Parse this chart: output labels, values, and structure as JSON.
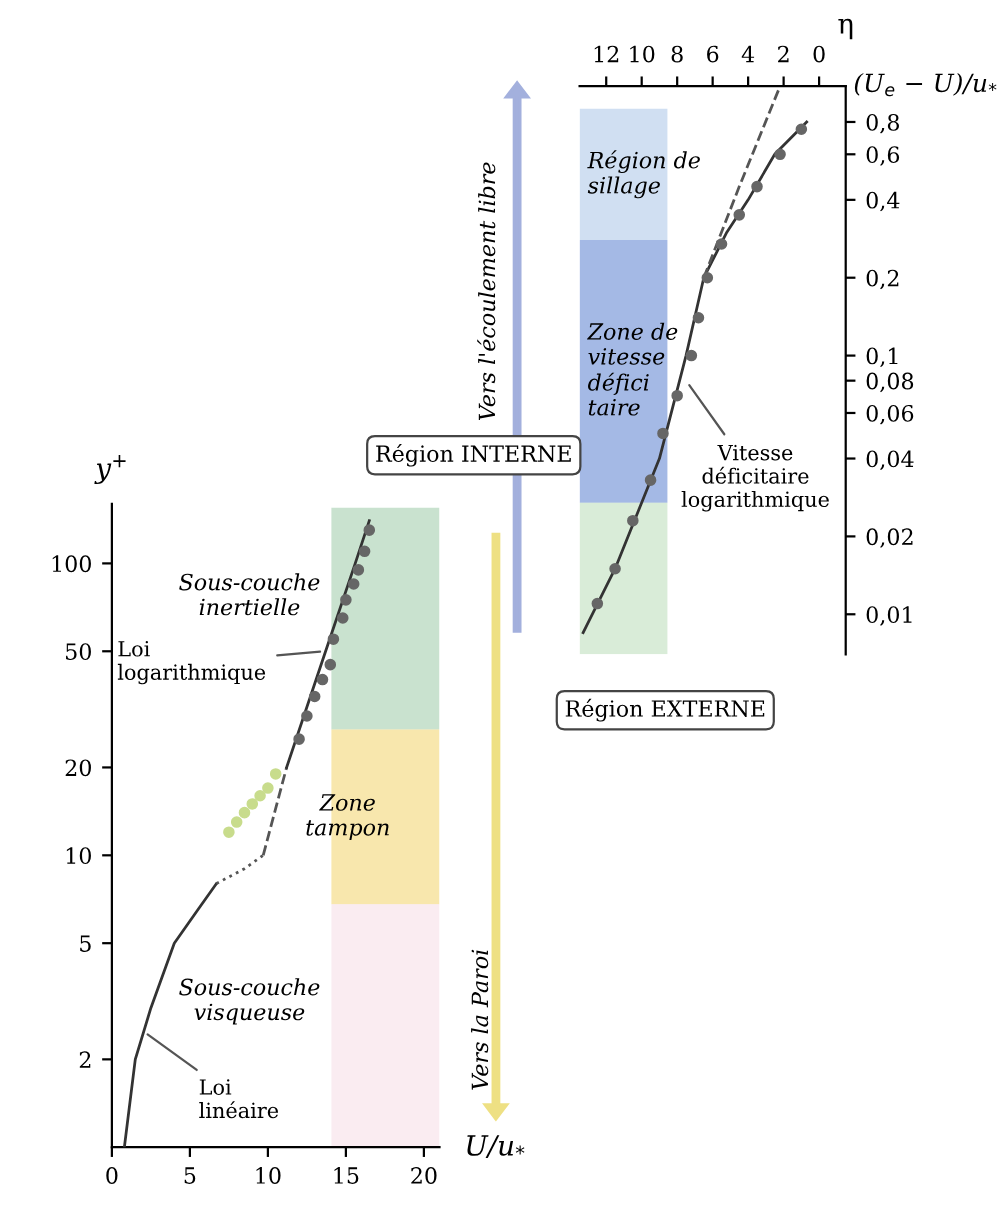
{
  "chart_data": [
    {
      "type": "line",
      "xlabel": "U/u$_{*}$",
      "ylabel": "y$^{+}$",
      "log": "y",
      "xlim": [
        0,
        21
      ],
      "ylim": [
        1,
        160
      ],
      "xticks": [
        0,
        5,
        10,
        15,
        20
      ],
      "yticks": [
        2,
        5,
        10,
        20,
        50,
        100
      ],
      "grid": false,
      "series": [
        {
          "type": "line",
          "color": "#333333",
          "line_style": "solid",
          "x": [
            0.8,
            1.5,
            2.5,
            4,
            5.5,
            6.7
          ],
          "values": [
            1,
            2,
            3,
            5,
            6.5,
            8
          ]
        },
        {
          "type": "line",
          "color": "#555555",
          "line_style": "dotted",
          "x": [
            6.7,
            8.5,
            9.7
          ],
          "values": [
            8,
            9,
            10
          ]
        },
        {
          "type": "line",
          "color": "#555555",
          "line_style": "dashed",
          "x": [
            9.7,
            11.2
          ],
          "values": [
            10,
            20
          ]
        },
        {
          "type": "line",
          "color": "#333333",
          "line_style": "solid",
          "x": [
            11.2,
            13.7,
            15.6,
            16.5
          ],
          "values": [
            20,
            50,
            100,
            140
          ]
        },
        {
          "type": "scatter",
          "color": "#c8dc8c",
          "marker": "circle",
          "x": [
            7.5,
            8,
            8.5,
            9,
            9.5,
            10,
            10.5
          ],
          "values": [
            12,
            13,
            14,
            15,
            16,
            17,
            19
          ]
        },
        {
          "type": "scatter",
          "color": "#666666",
          "marker": "circle",
          "x": [
            12,
            12.5,
            13,
            13.5,
            14,
            14.2,
            14.8,
            15,
            15.5,
            15.8,
            16.2,
            16.5
          ],
          "values": [
            25,
            30,
            35,
            40,
            45,
            55,
            65,
            75,
            85,
            95,
            110,
            130
          ]
        }
      ],
      "bands": [
        {
          "axis": "y",
          "from": 27,
          "to": 155,
          "label": "Sous-couche\ninertielle",
          "color": "#9ccaa8"
        },
        {
          "axis": "y",
          "from": 6.8,
          "to": 27,
          "label": "Zone\ntampon",
          "color": "#f3d36a"
        },
        {
          "axis": "y",
          "from": 1,
          "to": 6.8,
          "label": "Sous-couche\nvisqueuse",
          "color": "#f6dde6"
        }
      ],
      "annotations": [
        "Région INTERNE",
        {
          "text": "Loi\nlogarithmique",
          "x": 13.7,
          "y": 50
        },
        {
          "text": "Loi\nlinéaire",
          "x": 2,
          "y": 2.5
        },
        "Vers la Paroi"
      ]
    },
    {
      "type": "line",
      "xlabel": "(U$_{e}$ − U)/u$_{*}$",
      "ylabel": "η",
      "log": "y",
      "xlim": [
        13.5,
        -1.5
      ],
      "ylim": [
        0.007,
        1.1
      ],
      "xticks": [
        0,
        2,
        4,
        6,
        8,
        10,
        12
      ],
      "yticks": [
        {
          "value": 0.01,
          "label": "0,01"
        },
        {
          "value": 0.02,
          "label": "0,02"
        },
        {
          "value": 0.04,
          "label": "0,04"
        },
        {
          "value": 0.06,
          "label": "0,06"
        },
        {
          "value": 0.08,
          "label": "0,08"
        },
        {
          "value": 0.1,
          "label": "0,1"
        },
        {
          "value": 0.2,
          "label": "0,2"
        },
        {
          "value": 0.4,
          "label": "0,4"
        },
        {
          "value": 0.6,
          "label": "0,6"
        },
        {
          "value": 0.8,
          "label": "0,8"
        }
      ],
      "grid": false,
      "series": [
        {
          "type": "line",
          "color": "#333333",
          "line_style": "solid",
          "x": [
            13.3,
            11.5,
            9,
            7.5,
            6.5,
            5.2,
            4,
            2.5,
            0.7
          ],
          "values": [
            0.0085,
            0.015,
            0.04,
            0.1,
            0.2,
            0.3,
            0.4,
            0.6,
            0.8
          ]
        },
        {
          "type": "line",
          "color": "#555555",
          "line_style": "dashed",
          "x": [
            6.5,
            4.5,
            2.2
          ],
          "values": [
            0.2,
            0.45,
            1.1
          ]
        },
        {
          "type": "scatter",
          "color": "#666666",
          "marker": "circle",
          "x": [
            12.5,
            11.5,
            10.5,
            9.5,
            8.8,
            8,
            7.2,
            6.8,
            6.3,
            5.5,
            4.5,
            3.5,
            2.2,
            1
          ],
          "values": [
            0.011,
            0.015,
            0.023,
            0.033,
            0.05,
            0.07,
            0.1,
            0.14,
            0.2,
            0.27,
            0.35,
            0.45,
            0.6,
            0.75
          ]
        }
      ],
      "bands": [
        {
          "axis": "y",
          "from": 0.28,
          "to": 0.9,
          "label": "Région de\nsillage",
          "color": "#a9c4e8"
        },
        {
          "axis": "y",
          "from": 0.027,
          "to": 0.28,
          "label": "Zone de\nvitesse\ndéfici\ntaire",
          "color": "#5a7fd0"
        },
        {
          "axis": "y",
          "from": 0.007,
          "to": 0.027,
          "label": null,
          "color": "#b9dcb8"
        }
      ],
      "annotations": [
        "Région EXTERNE",
        {
          "text": "Vitesse\ndéficitaire\nlogarithmique",
          "x": 7.5,
          "y": 0.08
        },
        "Vers l'écoulement libre"
      ]
    }
  ]
}
